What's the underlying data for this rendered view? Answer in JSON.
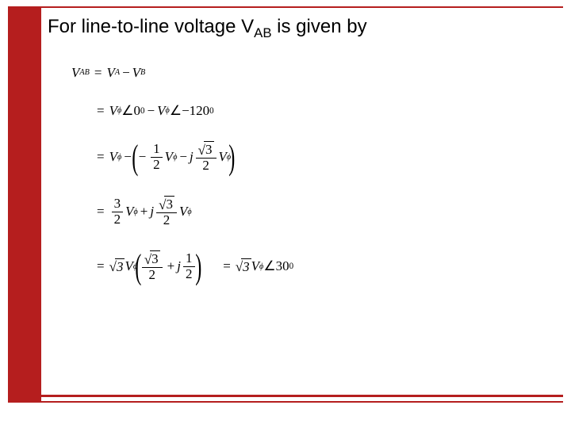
{
  "title": {
    "prefix": "For line-to-line voltage V",
    "subscript": "AB",
    "suffix": " is given by"
  },
  "equations": {
    "line1": {
      "lhs_V": "V",
      "lhs_sub": "AB",
      "eq": "=",
      "t1_V": "V",
      "t1_sub": "A",
      "minus": "−",
      "t2_V": "V",
      "t2_sub": "B"
    },
    "line2": {
      "eq": "=",
      "t1_V": "V",
      "t1_phi": "ϕ",
      "ang1": "∠",
      "a1_num": "0",
      "a1_sup": "0",
      "minus": "−",
      "t2_V": "V",
      "t2_phi": "ϕ",
      "ang2": "∠",
      "neg": "−",
      "a2_num": "120",
      "a2_sup": "0"
    },
    "line3": {
      "eq": "=",
      "Vphi_V": "V",
      "Vphi_phi": "ϕ",
      "minus1": "−",
      "lp": "(",
      "rp": ")",
      "neg": "−",
      "half_num": "1",
      "half_den": "2",
      "Vphi2_V": "V",
      "Vphi2_phi": "ϕ",
      "minus2": "−",
      "j": "j",
      "sqrt3": "3",
      "den2": "2",
      "Vphi3_V": "V",
      "Vphi3_phi": "ϕ"
    },
    "line4": {
      "eq": "=",
      "f1_num": "3",
      "f1_den": "2",
      "V1": "V",
      "phi1": "ϕ",
      "plus": "+",
      "j": "j",
      "sqrt3": "3",
      "den2": "2",
      "V2": "V",
      "phi2": "ϕ"
    },
    "line5": {
      "eq1": "=",
      "sqrt3a": "3",
      "V1": "V",
      "phi1": "ϕ",
      "lp": "(",
      "rp": ")",
      "sqrt3b": "3",
      "den2a": "2",
      "plus": "+",
      "j": "j",
      "half_num": "1",
      "half_den": "2",
      "eq2": "=",
      "sqrt3c": "3",
      "V2": "V",
      "phi2": "ϕ",
      "ang": "∠",
      "deg": "30",
      "sup": "0"
    }
  },
  "style": {
    "accent": "#b51e1e",
    "bg": "#ffffff",
    "title_fontsize": 24,
    "eq_fontsize": 17
  }
}
